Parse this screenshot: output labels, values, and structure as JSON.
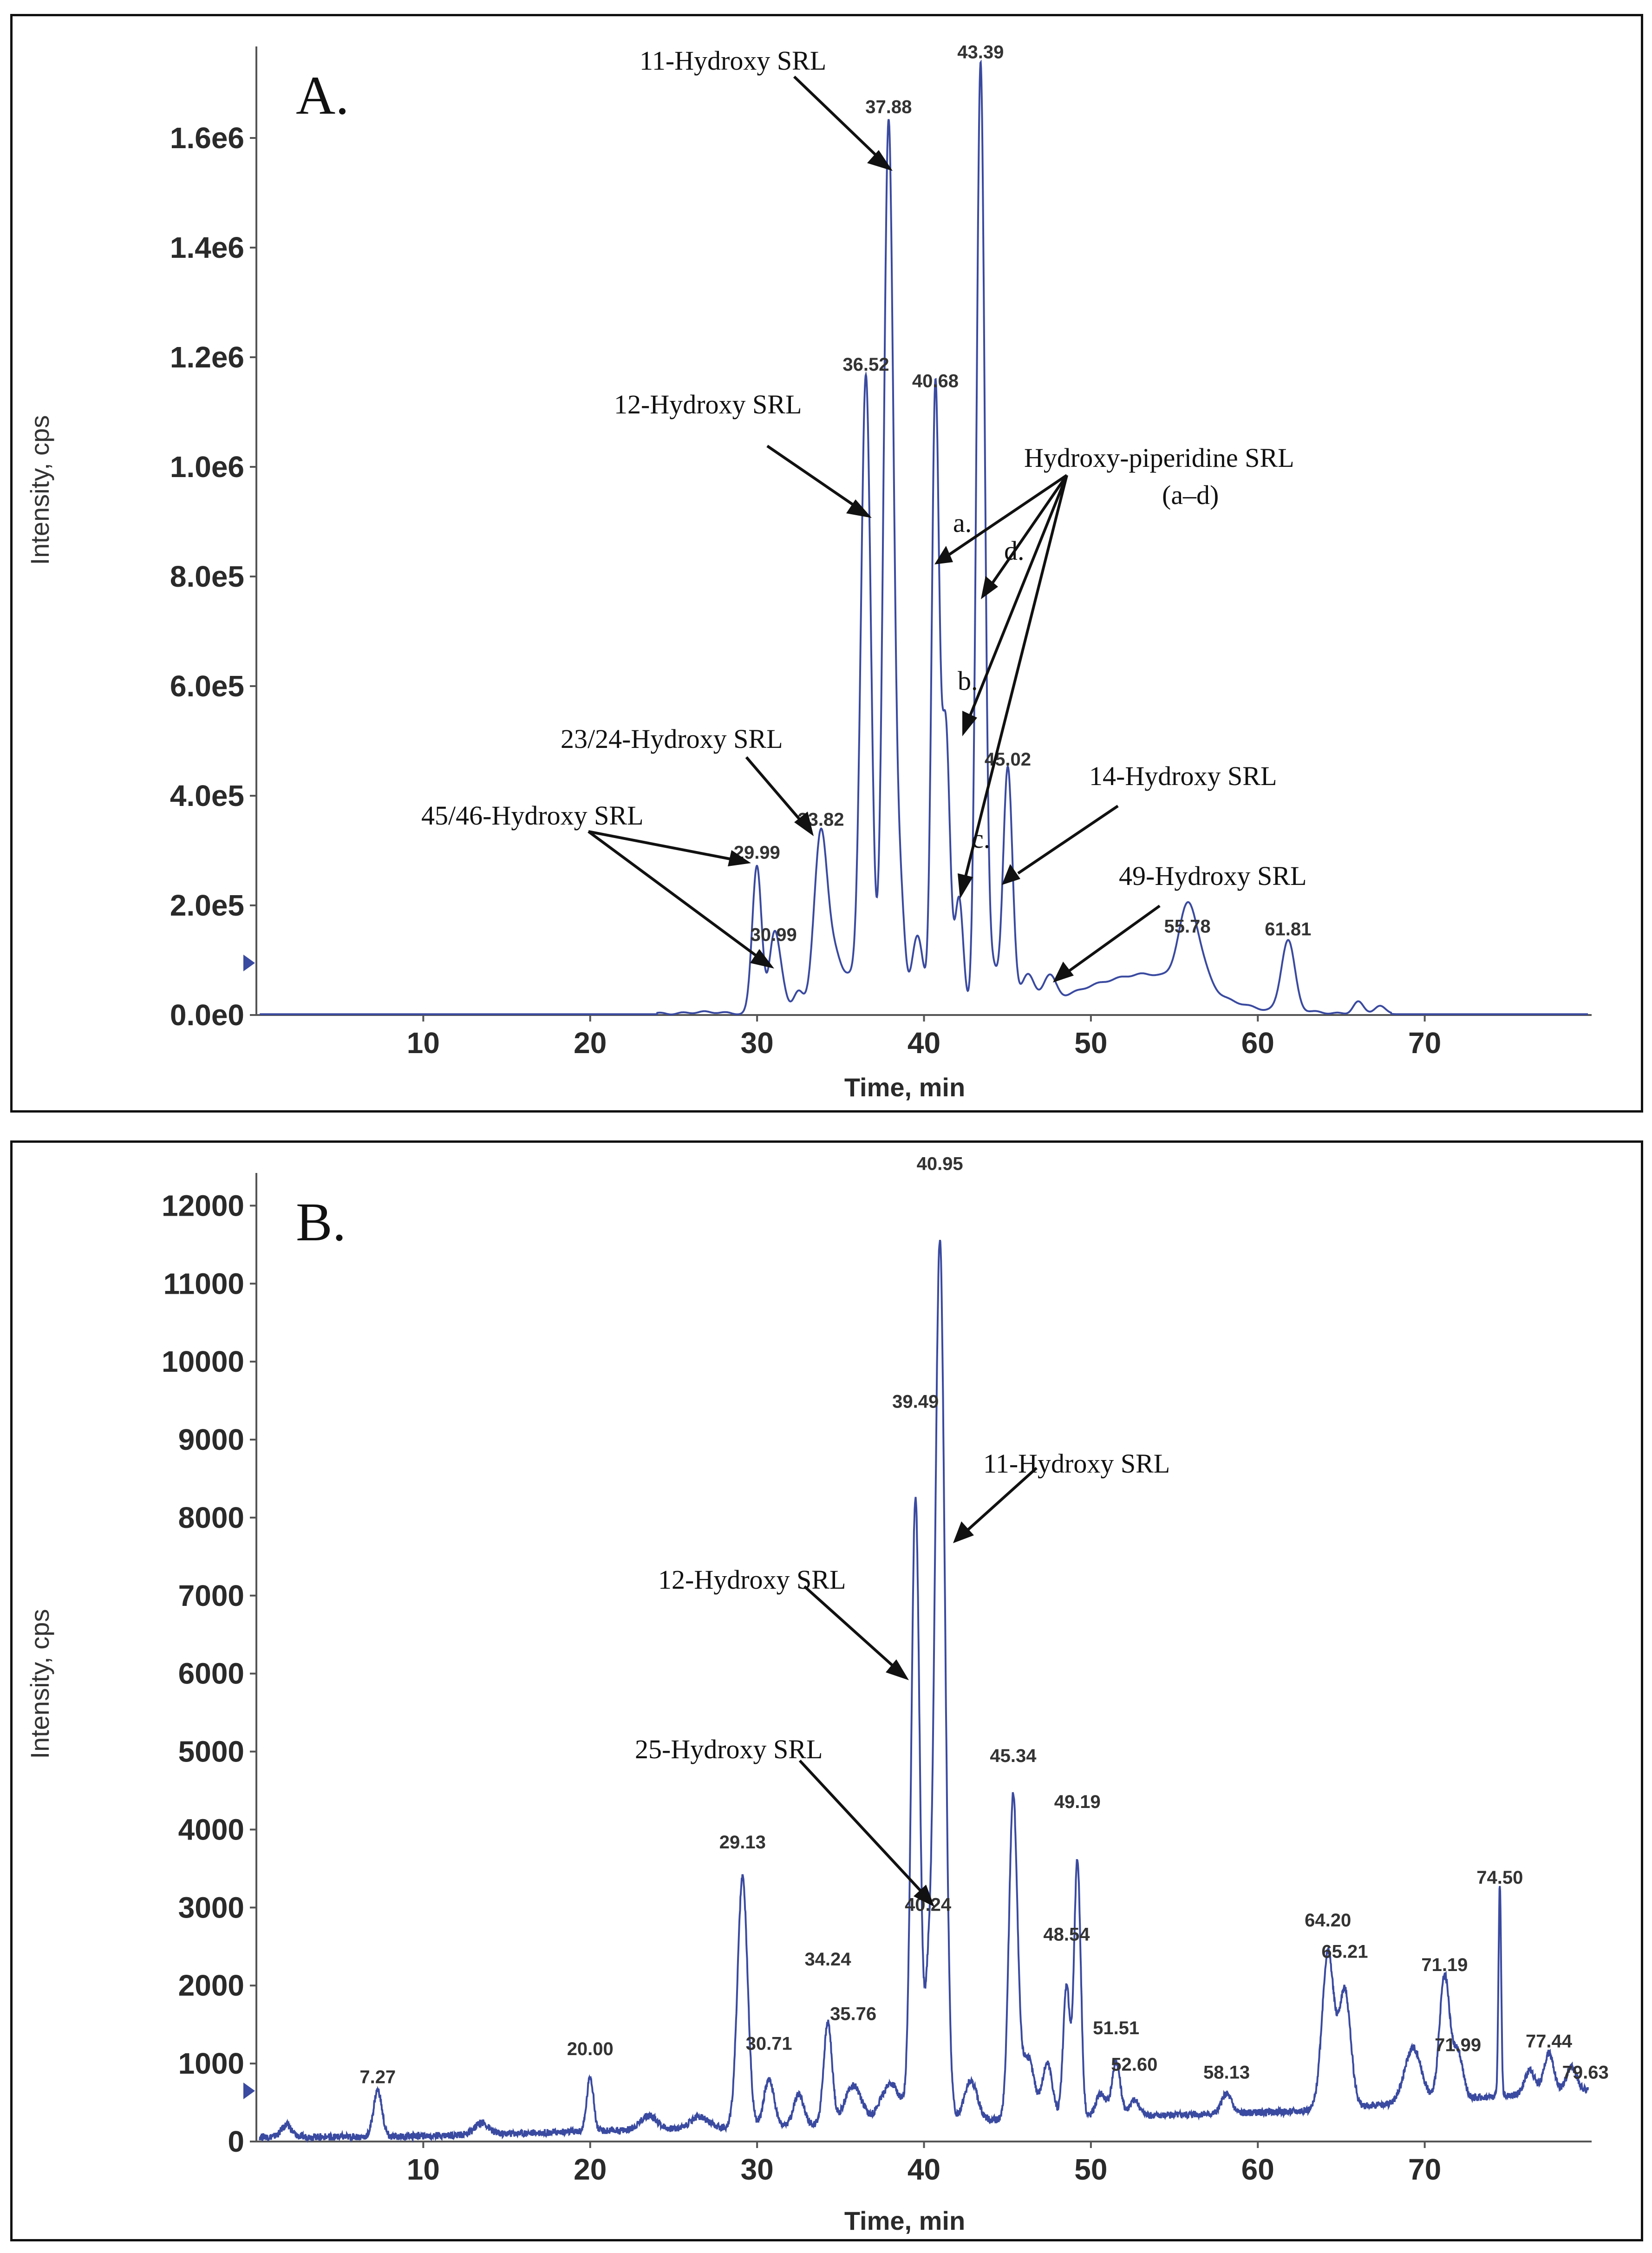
{
  "chart_data": [
    {
      "type": "line",
      "panel": "A.",
      "xlabel": "Time, min",
      "ylabel": "Intensity, cps",
      "xlim": [
        0,
        80
      ],
      "ylim": [
        0,
        1750000
      ],
      "xticks": [
        10,
        20,
        30,
        40,
        50,
        60,
        70
      ],
      "xtick_labels": [
        "10",
        "20",
        "30",
        "40",
        "50",
        "60",
        "70"
      ],
      "yticks": [
        0,
        200000,
        400000,
        600000,
        800000,
        1000000,
        1200000,
        1400000,
        1600000
      ],
      "ytick_labels": [
        "0.0e0",
        "2.0e5",
        "4.0e5",
        "6.0e5",
        "8.0e5",
        "1.0e6",
        "1.2e6",
        "1.4e6",
        "1.6e6"
      ],
      "line_color": "#3a4aa0",
      "peaks": [
        {
          "x": 29.99,
          "y": 270000,
          "w": 0.28
        },
        {
          "x": 30.99,
          "y": 120000,
          "w": 0.28
        },
        {
          "x": 31.4,
          "y": 60000,
          "w": 0.3
        },
        {
          "x": 32.5,
          "y": 40000,
          "w": 0.3
        },
        {
          "x": 33.82,
          "y": 330000,
          "w": 0.4
        },
        {
          "x": 34.7,
          "y": 90000,
          "w": 0.4
        },
        {
          "x": 35.6,
          "y": 60000,
          "w": 0.4
        },
        {
          "x": 36.52,
          "y": 1160000,
          "w": 0.3
        },
        {
          "x": 37.88,
          "y": 1630000,
          "w": 0.3
        },
        {
          "x": 38.6,
          "y": 190000,
          "w": 0.25
        },
        {
          "x": 39.6,
          "y": 140000,
          "w": 0.35
        },
        {
          "x": 40.68,
          "y": 1130000,
          "w": 0.22
        },
        {
          "x": 41.3,
          "y": 520000,
          "w": 0.25
        },
        {
          "x": 42.1,
          "y": 210000,
          "w": 0.25
        },
        {
          "x": 43.39,
          "y": 1730000,
          "w": 0.25
        },
        {
          "x": 44.1,
          "y": 80000,
          "w": 0.3
        },
        {
          "x": 45.02,
          "y": 440000,
          "w": 0.28
        },
        {
          "x": 46.2,
          "y": 60000,
          "w": 0.4
        },
        {
          "x": 47.5,
          "y": 50000,
          "w": 0.4
        },
        {
          "x": 53.0,
          "y": 70000,
          "w": 3.5
        },
        {
          "x": 55.78,
          "y": 135000,
          "w": 0.55
        },
        {
          "x": 56.6,
          "y": 40000,
          "w": 0.6
        },
        {
          "x": 61.81,
          "y": 130000,
          "w": 0.4
        },
        {
          "x": 66.0,
          "y": 20000,
          "w": 0.3
        },
        {
          "x": 67.3,
          "y": 10000,
          "w": 0.3
        }
      ],
      "peak_labels": [
        {
          "label": "29.99",
          "x": 29.99,
          "y": 270000
        },
        {
          "label": "30.99",
          "x": 30.99,
          "y": 120000
        },
        {
          "label": "33.82",
          "x": 33.82,
          "y": 330000
        },
        {
          "label": "36.52",
          "x": 36.52,
          "y": 1160000
        },
        {
          "label": "37.88",
          "x": 37.88,
          "y": 1630000
        },
        {
          "label": "40.68",
          "x": 40.68,
          "y": 1130000
        },
        {
          "label": "43.39",
          "x": 43.39,
          "y": 1730000
        },
        {
          "label": "45.02",
          "x": 45.02,
          "y": 440000
        },
        {
          "label": "55.78",
          "x": 55.78,
          "y": 135000
        },
        {
          "label": "61.81",
          "x": 61.81,
          "y": 130000
        }
      ],
      "annotations": [
        "11-Hydroxy SRL",
        "12-Hydroxy SRL",
        "Hydroxy-piperidine SRL",
        "(a–d)",
        "a.",
        "b.",
        "c.",
        "d.",
        "23/24-Hydroxy SRL",
        "45/46-Hydroxy SRL",
        "14-Hydroxy SRL",
        "49-Hydroxy SRL"
      ]
    },
    {
      "type": "line",
      "panel": "B.",
      "xlabel": "Time, min",
      "ylabel": "Intensity, cps",
      "xlim": [
        0,
        80
      ],
      "ylim": [
        0,
        12300
      ],
      "xticks": [
        10,
        20,
        30,
        40,
        50,
        60,
        70
      ],
      "xtick_labels": [
        "10",
        "20",
        "30",
        "40",
        "50",
        "60",
        "70"
      ],
      "yticks": [
        0,
        1000,
        2000,
        3000,
        4000,
        5000,
        6000,
        7000,
        8000,
        9000,
        10000,
        11000,
        12000
      ],
      "ytick_labels": [
        "0",
        "1000",
        "2000",
        "3000",
        "4000",
        "5000",
        "6000",
        "7000",
        "8000",
        "9000",
        "10000",
        "11000",
        "12000"
      ],
      "line_color": "#3a4aa0",
      "peaks": [
        {
          "x": 1.8,
          "y": 150,
          "w": 0.3
        },
        {
          "x": 7.27,
          "y": 600,
          "w": 0.25
        },
        {
          "x": 13.5,
          "y": 150,
          "w": 0.4
        },
        {
          "x": 20.0,
          "y": 700,
          "w": 0.2
        },
        {
          "x": 23.5,
          "y": 180,
          "w": 0.5
        },
        {
          "x": 26.5,
          "y": 150,
          "w": 0.5
        },
        {
          "x": 29.13,
          "y": 3200,
          "w": 0.3
        },
        {
          "x": 30.71,
          "y": 600,
          "w": 0.3
        },
        {
          "x": 32.5,
          "y": 400,
          "w": 0.3
        },
        {
          "x": 34.24,
          "y": 1300,
          "w": 0.25
        },
        {
          "x": 35.76,
          "y": 500,
          "w": 0.5
        },
        {
          "x": 38.0,
          "y": 500,
          "w": 0.6
        },
        {
          "x": 39.49,
          "y": 8000,
          "w": 0.25
        },
        {
          "x": 40.24,
          "y": 1500,
          "w": 0.2
        },
        {
          "x": 40.95,
          "y": 11300,
          "w": 0.3
        },
        {
          "x": 42.8,
          "y": 500,
          "w": 0.4
        },
        {
          "x": 45.34,
          "y": 4100,
          "w": 0.25
        },
        {
          "x": 46.2,
          "y": 800,
          "w": 0.4
        },
        {
          "x": 47.4,
          "y": 700,
          "w": 0.3
        },
        {
          "x": 48.54,
          "y": 1700,
          "w": 0.2
        },
        {
          "x": 49.19,
          "y": 3300,
          "w": 0.2
        },
        {
          "x": 50.6,
          "y": 300,
          "w": 0.3
        },
        {
          "x": 51.51,
          "y": 700,
          "w": 0.25
        },
        {
          "x": 52.6,
          "y": 200,
          "w": 0.3
        },
        {
          "x": 58.13,
          "y": 250,
          "w": 0.3
        },
        {
          "x": 64.2,
          "y": 2000,
          "w": 0.35
        },
        {
          "x": 65.21,
          "y": 1500,
          "w": 0.35
        },
        {
          "x": 69.3,
          "y": 700,
          "w": 0.5
        },
        {
          "x": 71.19,
          "y": 1600,
          "w": 0.3
        },
        {
          "x": 71.99,
          "y": 600,
          "w": 0.3
        },
        {
          "x": 74.5,
          "y": 2700,
          "w": 0.08
        },
        {
          "x": 76.3,
          "y": 300,
          "w": 0.3
        },
        {
          "x": 77.44,
          "y": 500,
          "w": 0.3
        },
        {
          "x": 78.8,
          "y": 300,
          "w": 0.3
        }
      ],
      "peak_labels": [
        {
          "label": "7.27",
          "x": 7.27,
          "y": 640
        },
        {
          "label": "20.00",
          "x": 20.0,
          "y": 1000
        },
        {
          "label": "29.13",
          "x": 29.13,
          "y": 3650
        },
        {
          "label": "30.71",
          "x": 30.71,
          "y": 1070
        },
        {
          "label": "34.24",
          "x": 34.24,
          "y": 2150
        },
        {
          "label": "35.76",
          "x": 35.76,
          "y": 1450
        },
        {
          "label": "39.49",
          "x": 39.49,
          "y": 9300
        },
        {
          "label": "40.24",
          "x": 40.24,
          "y": 2850
        },
        {
          "label": "40.95",
          "x": 40.95,
          "y": 12350
        },
        {
          "label": "45.34",
          "x": 45.34,
          "y": 4760
        },
        {
          "label": "48.54",
          "x": 48.54,
          "y": 2470
        },
        {
          "label": "49.19",
          "x": 49.19,
          "y": 4170
        },
        {
          "label": "51.51",
          "x": 51.51,
          "y": 1270
        },
        {
          "label": "52.60",
          "x": 52.6,
          "y": 800
        },
        {
          "label": "58.13",
          "x": 58.13,
          "y": 700
        },
        {
          "label": "64.20",
          "x": 64.2,
          "y": 2650
        },
        {
          "label": "65.21",
          "x": 65.21,
          "y": 2250
        },
        {
          "label": "71.19",
          "x": 71.19,
          "y": 2080
        },
        {
          "label": "71.99",
          "x": 71.99,
          "y": 1050
        },
        {
          "label": "74.50",
          "x": 74.5,
          "y": 3200
        },
        {
          "label": "77.44",
          "x": 77.44,
          "y": 1100
        },
        {
          "label": "79.63",
          "x": 79.63,
          "y": 700
        }
      ],
      "annotations": [
        "11-Hydroxy SRL",
        "12-Hydroxy SRL",
        "25-Hydroxy SRL"
      ]
    }
  ]
}
